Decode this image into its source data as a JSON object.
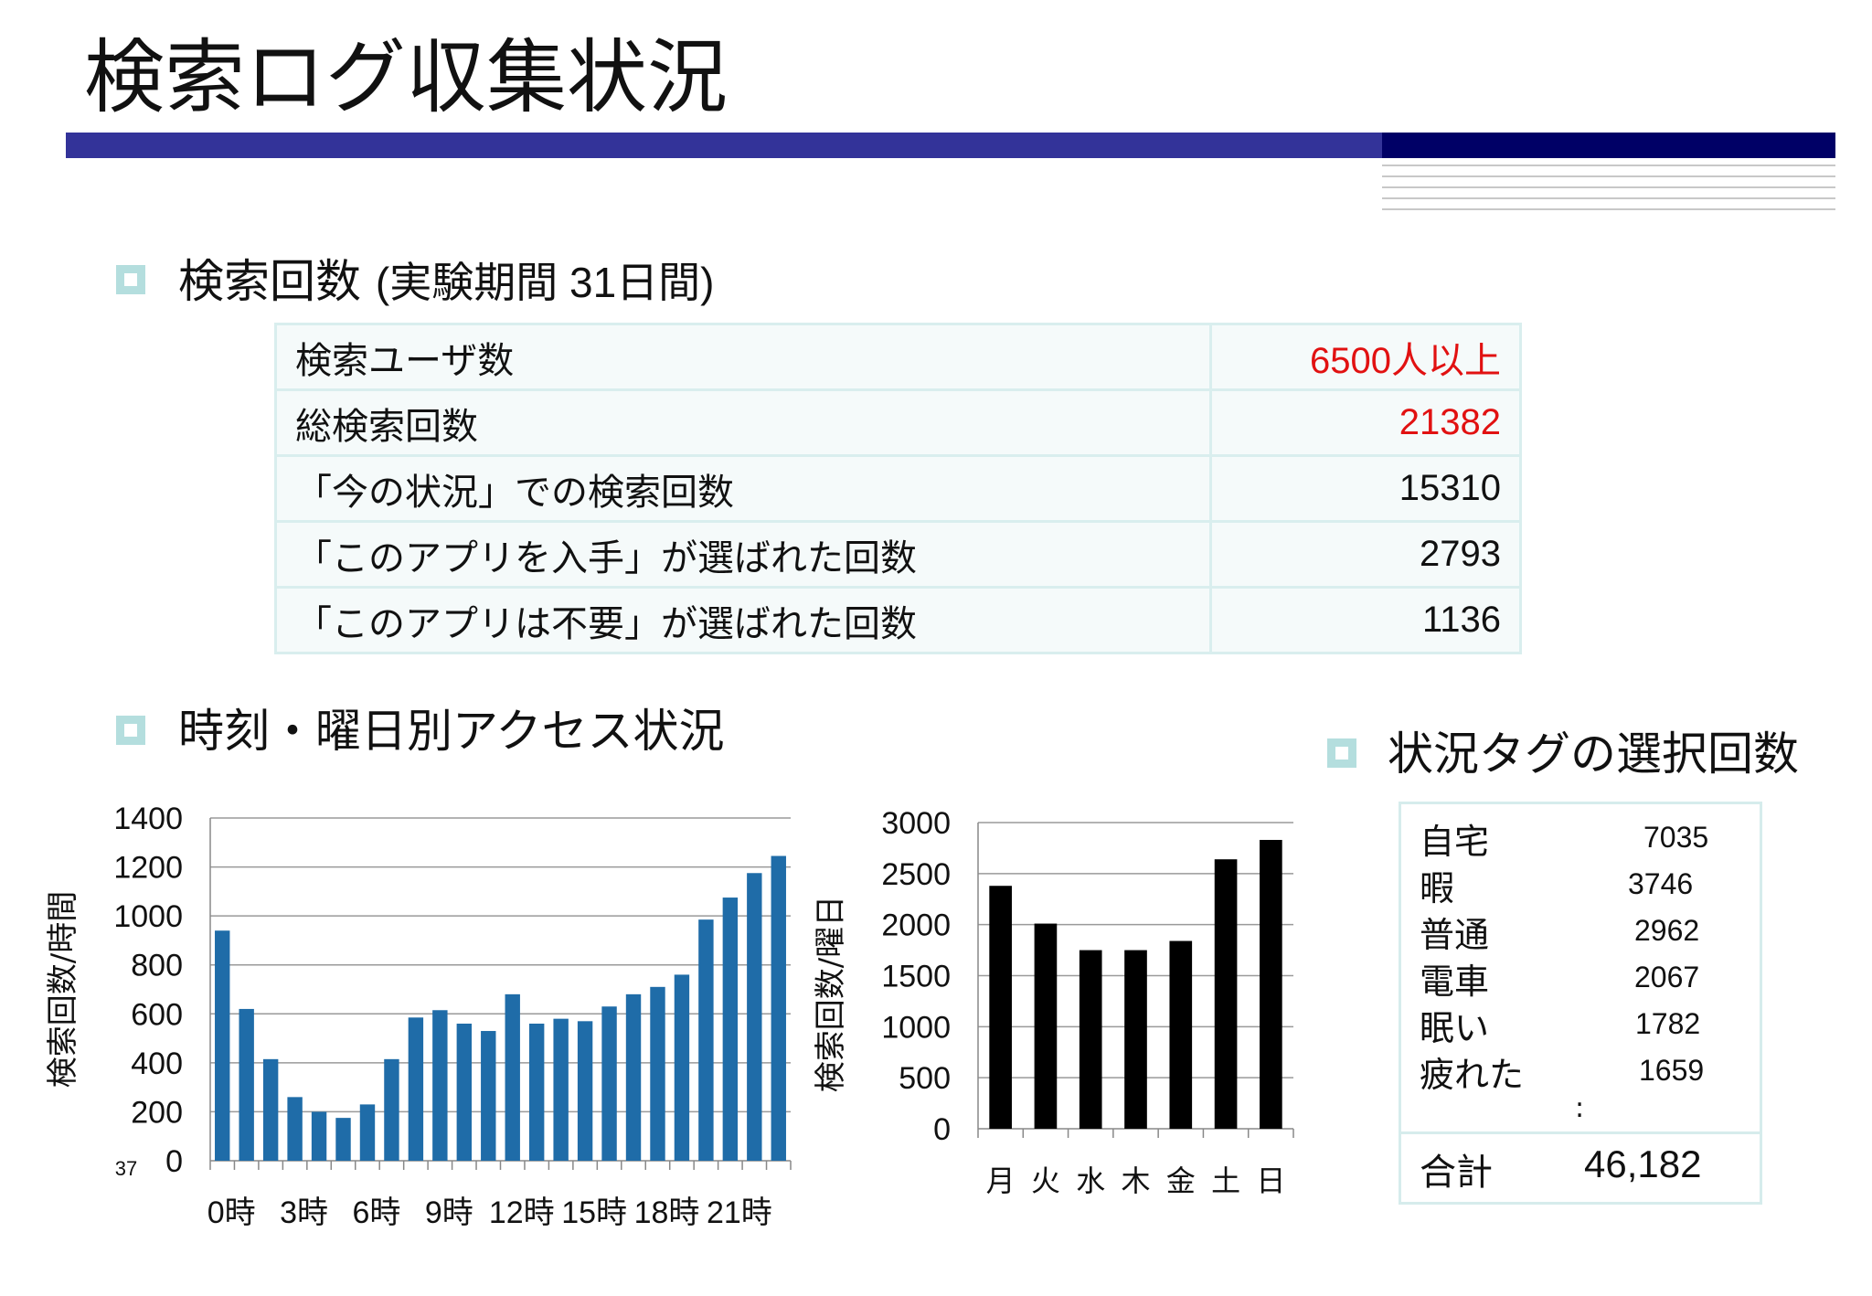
{
  "title": "検索ログ収集状況",
  "sections": {
    "search_count": "検索回数",
    "search_count_note": "(実験期間 31日間)",
    "access": "時刻・曜日別アクセス状況",
    "tags": "状況タグの選択回数"
  },
  "summary_table": [
    {
      "label": "検索ユーザ数",
      "value": "6500人以上",
      "highlight": "#e11111"
    },
    {
      "label": "総検索回数",
      "value": "21382",
      "highlight": "#e11111"
    },
    {
      "label": "「今の状況」での検索回数",
      "value": "15310"
    },
    {
      "label": "「このアプリを入手」が選ばれた回数",
      "value": "2793"
    },
    {
      "label": "「このアプリは不要」が選ばれた回数",
      "value": "1136"
    }
  ],
  "tag_table": {
    "rows": [
      {
        "label": "自宅",
        "value": "7035"
      },
      {
        "label": "暇",
        "value": "3746"
      },
      {
        "label": "普通",
        "value": "2962"
      },
      {
        "label": "電車",
        "value": "2067"
      },
      {
        "label": "眠い",
        "value": "1782"
      },
      {
        "label": "疲れた",
        "value": "1659"
      }
    ],
    "ellipsis": ":",
    "total_label": "合計",
    "total_value": "46,182"
  },
  "colors": {
    "accent": "#333399",
    "accent_dark": "#000066",
    "bullet": "#b4dede",
    "hour_bar": "#1f6ca8",
    "day_bar": "#000000"
  },
  "chart_data": [
    {
      "type": "bar",
      "ylabel": "検索回数/時間",
      "ylim": [
        0,
        1400
      ],
      "yticks": [
        0,
        200,
        400,
        600,
        800,
        1000,
        1200,
        1400
      ],
      "x_tick_labels": [
        "0時",
        "3時",
        "6時",
        "9時",
        "12時",
        "15時",
        "18時",
        "21時"
      ],
      "corner_label": "37",
      "categories": [
        "0",
        "1",
        "2",
        "3",
        "4",
        "5",
        "6",
        "7",
        "8",
        "9",
        "10",
        "11",
        "12",
        "13",
        "14",
        "15",
        "16",
        "17",
        "18",
        "19",
        "20",
        "21",
        "22",
        "23"
      ],
      "values": [
        940,
        620,
        415,
        260,
        200,
        175,
        230,
        415,
        585,
        615,
        560,
        530,
        680,
        560,
        580,
        570,
        630,
        680,
        710,
        760,
        985,
        1075,
        1175,
        1245
      ],
      "grid": true
    },
    {
      "type": "bar",
      "ylabel": "検索回数/曜日",
      "ylim": [
        0,
        3000
      ],
      "yticks": [
        0,
        500,
        1000,
        1500,
        2000,
        2500,
        3000
      ],
      "categories": [
        "月",
        "火",
        "水",
        "木",
        "金",
        "土",
        "日"
      ],
      "values": [
        2380,
        2010,
        1750,
        1750,
        1840,
        2640,
        2830
      ],
      "grid": true
    }
  ]
}
